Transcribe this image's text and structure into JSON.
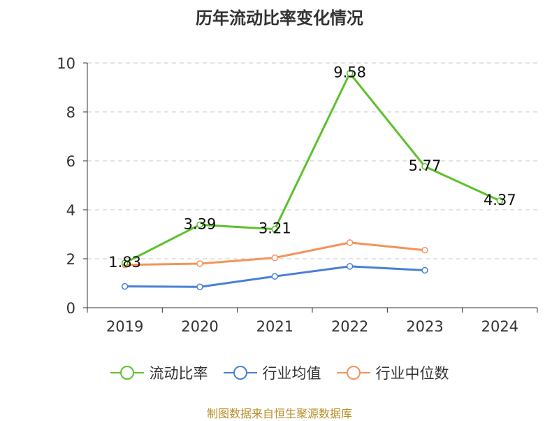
{
  "chart_data": {
    "type": "line",
    "title": "历年流动比率变化情况",
    "categories": [
      "2019",
      "2020",
      "2021",
      "2022",
      "2023",
      "2024"
    ],
    "ylim": [
      0,
      10
    ],
    "yticks": [
      0,
      2,
      4,
      6,
      8,
      10
    ],
    "grid": "horizontal-dashed",
    "legend_position": "bottom",
    "series": [
      {
        "name": "流动比率",
        "color": "#5cc12c",
        "values": [
          1.83,
          3.39,
          3.21,
          9.58,
          5.77,
          4.37
        ],
        "labels": [
          "1.83",
          "3.39",
          "3.21",
          "9.58",
          "5.77",
          "4.37"
        ]
      },
      {
        "name": "行业均值",
        "color": "#4a7fd6",
        "values": [
          0.87,
          0.85,
          1.28,
          1.69,
          1.53,
          null
        ]
      },
      {
        "name": "行业中位数",
        "color": "#f5935a",
        "values": [
          1.75,
          1.8,
          2.04,
          2.66,
          2.35,
          null
        ]
      }
    ]
  },
  "source": "制图数据来自恒生聚源数据库"
}
